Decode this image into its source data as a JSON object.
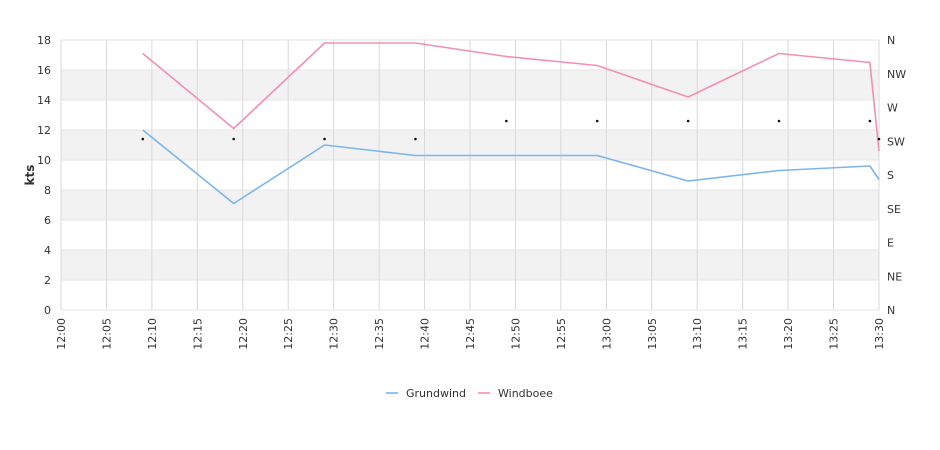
{
  "chart_data": {
    "type": "line",
    "ylabel": "kts",
    "ylim": [
      0,
      18
    ],
    "y_ticks": [
      "0",
      "2",
      "4",
      "6",
      "8",
      "10",
      "12",
      "14",
      "16",
      "18"
    ],
    "x_ticks": [
      "12:00",
      "12:05",
      "12:10",
      "12:15",
      "12:20",
      "12:25",
      "12:30",
      "12:35",
      "12:40",
      "12:45",
      "12:50",
      "12:55",
      "13:00",
      "13:05",
      "13:10",
      "13:15",
      "13:20",
      "13:25",
      "13:30"
    ],
    "direction_axis": [
      "N",
      "NE",
      "E",
      "SE",
      "S",
      "SW",
      "W",
      "NW",
      "N"
    ],
    "grid": true,
    "legend_position": "bottom",
    "series": [
      {
        "name": "Grundwind",
        "color": "#7cb5ec",
        "points": [
          [
            "12:09",
            12.0
          ],
          [
            "12:19",
            7.1
          ],
          [
            "12:29",
            11.0
          ],
          [
            "12:39",
            10.3
          ],
          [
            "12:59",
            10.3
          ],
          [
            "13:09",
            8.6
          ],
          [
            "13:19",
            9.3
          ],
          [
            "13:29",
            9.6
          ],
          [
            "13:30",
            8.7
          ]
        ]
      },
      {
        "name": "Windboee",
        "color": "#f28fb8",
        "points": [
          [
            "12:09",
            17.1
          ],
          [
            "12:19",
            12.1
          ],
          [
            "12:29",
            17.8
          ],
          [
            "12:39",
            17.8
          ],
          [
            "12:49",
            16.9
          ],
          [
            "12:59",
            16.3
          ],
          [
            "13:09",
            14.2
          ],
          [
            "13:19",
            17.1
          ],
          [
            "13:29",
            16.5
          ],
          [
            "13:30",
            10.6
          ]
        ]
      }
    ],
    "direction_points": [
      [
        "12:09",
        11.4
      ],
      [
        "12:19",
        11.4
      ],
      [
        "12:29",
        11.4
      ],
      [
        "12:39",
        11.4
      ],
      [
        "12:49",
        12.6
      ],
      [
        "12:59",
        12.6
      ],
      [
        "13:09",
        12.6
      ],
      [
        "13:19",
        12.6
      ],
      [
        "13:29",
        12.6
      ],
      [
        "13:30",
        11.4
      ]
    ]
  }
}
